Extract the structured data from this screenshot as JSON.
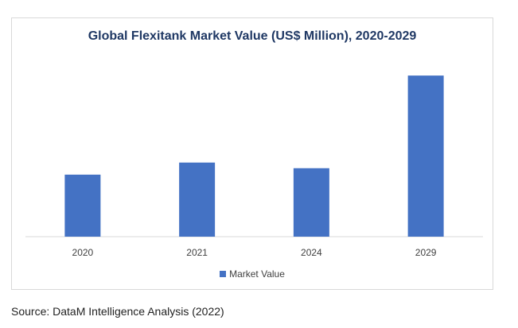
{
  "chart_data": {
    "type": "bar",
    "title": "Global Flexitank Market Value (US$ Million), 2020-2029",
    "categories": [
      "2020",
      "2021",
      "2024",
      "2029"
    ],
    "series": [
      {
        "name": "Market Value",
        "values": [
          77,
          92,
          85,
          200
        ]
      }
    ],
    "xlabel": "",
    "ylabel": "",
    "ylim": [
      0,
      210
    ],
    "grid": false,
    "legend": "bottom",
    "bar_color": "#4472c4",
    "axis_color": "#d9d9d9"
  },
  "source": "Source: DataM Intelligence Analysis (2022)"
}
